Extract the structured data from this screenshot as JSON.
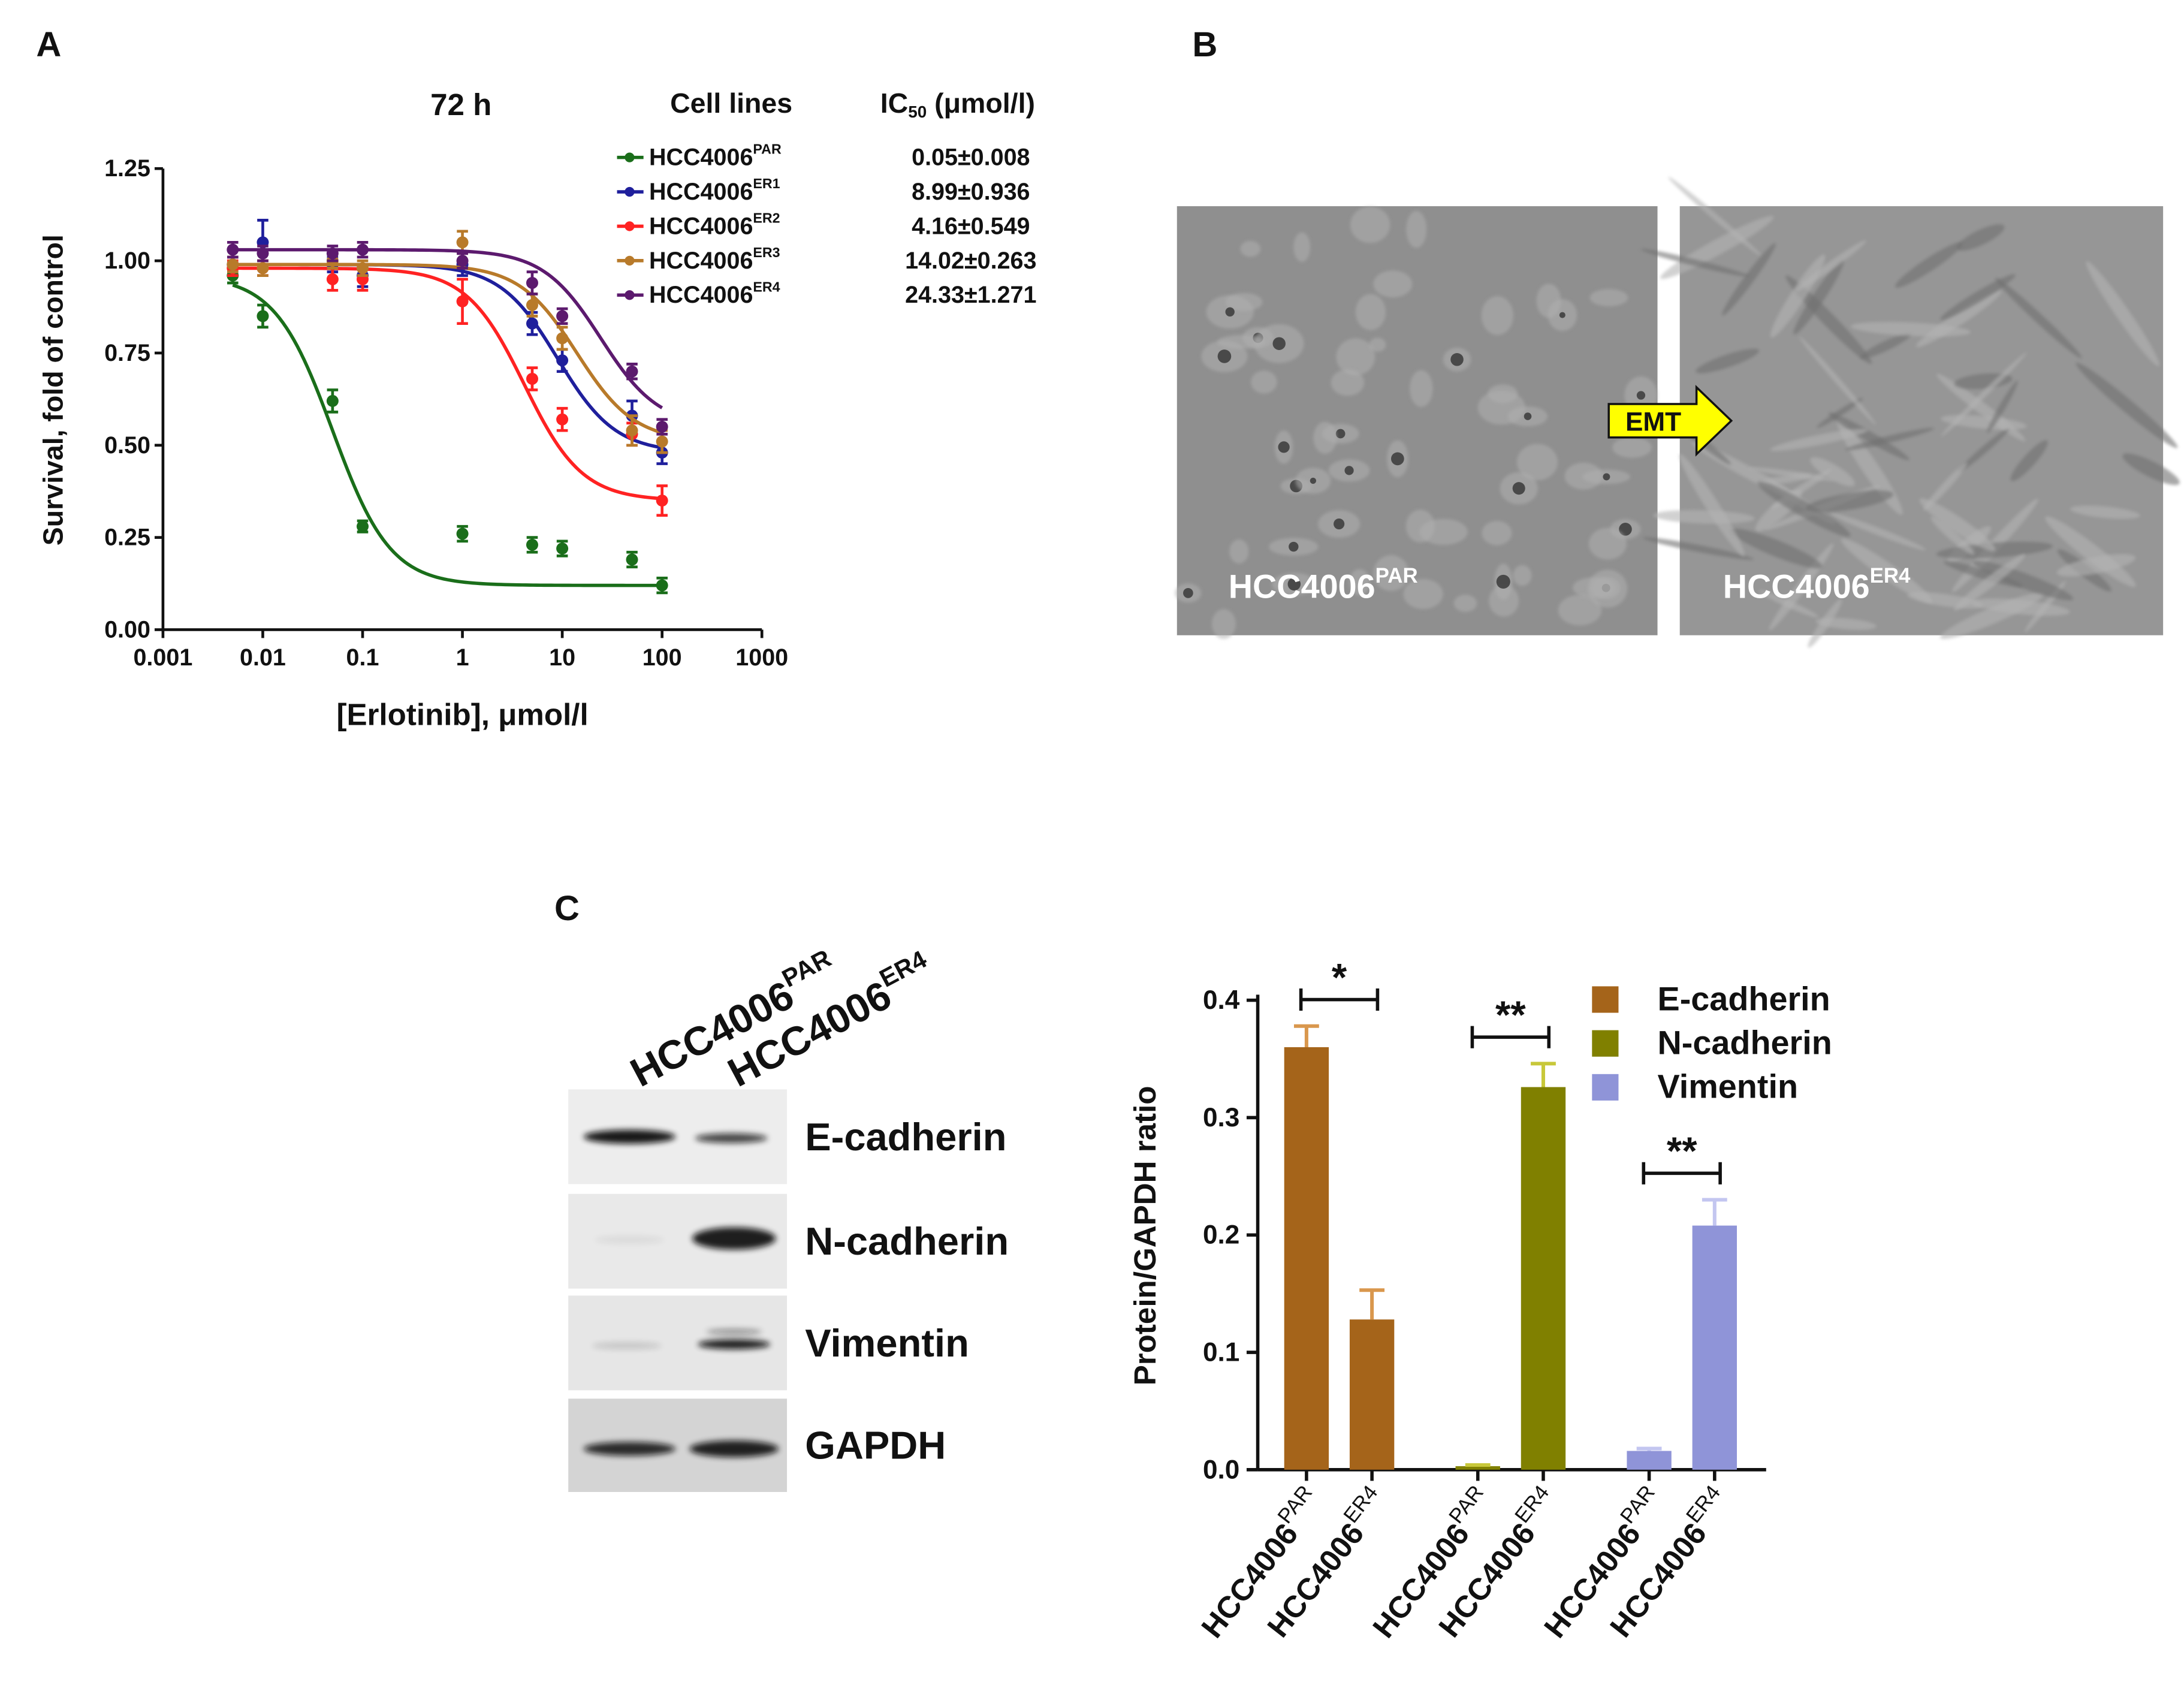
{
  "panel_labels": [
    "A",
    "B",
    "C"
  ],
  "chart_data": [
    {
      "type": "line",
      "title": "72 h",
      "x_label": "[Erlotinib], μmol/l",
      "y_label": "Survival, fold of control",
      "legend_header": "Cell lines",
      "ic50_header": {
        "base": "IC",
        "sub": "50",
        "rest": " (μmol/l)"
      },
      "log_x": true,
      "x": [
        0.005,
        0.01,
        0.05,
        0.1,
        1,
        5,
        10,
        50,
        100
      ],
      "xlim": [
        0.001,
        1000
      ],
      "xticks": [
        0.001,
        0.01,
        0.1,
        1,
        10,
        100,
        1000
      ],
      "ylim": [
        0,
        1.25
      ],
      "yticks": [
        {
          "value": 0,
          "label": "0.00"
        },
        0.25,
        {
          "value": 0.5,
          "label": "0.50"
        },
        0.75,
        {
          "value": 1,
          "label": "1.00"
        },
        1.25
      ],
      "series": [
        {
          "name": "HCC4006",
          "superscript": "PAR",
          "color": "#1a6e1a",
          "values": [
            0.96,
            0.85,
            0.62,
            0.28,
            0.26,
            0.23,
            0.22,
            0.19,
            0.12
          ],
          "errors": [
            0.02,
            0.03,
            0.03,
            0.015,
            0.02,
            0.02,
            0.02,
            0.02,
            0.02
          ],
          "ic50": 0.05,
          "ic50_sd": 0.008,
          "ic50_label": "0.05±0.008"
        },
        {
          "name": "HCC4006",
          "superscript": "ER1",
          "color": "#1f1f9c",
          "values": [
            0.99,
            1.05,
            0.99,
            0.96,
            0.99,
            0.83,
            0.73,
            0.58,
            0.48
          ],
          "errors": [
            0.02,
            0.06,
            0.02,
            0.03,
            0.03,
            0.03,
            0.03,
            0.04,
            0.03
          ],
          "ic50": 8.99,
          "ic50_sd": 0.936,
          "ic50_label": "8.99±0.936"
        },
        {
          "name": "HCC4006",
          "superscript": "ER2",
          "color": "#ff2222",
          "values": [
            0.98,
            0.98,
            0.95,
            0.95,
            0.89,
            0.68,
            0.57,
            0.53,
            0.35
          ],
          "errors": [
            0.02,
            0.02,
            0.03,
            0.03,
            0.06,
            0.03,
            0.03,
            0.03,
            0.04
          ],
          "ic50": 4.16,
          "ic50_sd": 0.549,
          "ic50_label": "4.16±0.549"
        },
        {
          "name": "HCC4006",
          "superscript": "ER3",
          "color": "#b87a2a",
          "values": [
            0.99,
            0.98,
            1.0,
            0.98,
            1.05,
            0.88,
            0.79,
            0.54,
            0.51
          ],
          "errors": [
            0.02,
            0.02,
            0.02,
            0.02,
            0.03,
            0.03,
            0.03,
            0.04,
            0.03
          ],
          "ic50": 14.02,
          "ic50_sd": 0.263,
          "ic50_label": "14.02±0.263"
        },
        {
          "name": "HCC4006",
          "superscript": "ER4",
          "color": "#5c1a6e",
          "values": [
            1.03,
            1.02,
            1.02,
            1.03,
            1.0,
            0.94,
            0.85,
            0.7,
            0.55
          ],
          "errors": [
            0.02,
            0.02,
            0.02,
            0.02,
            0.02,
            0.03,
            0.02,
            0.02,
            0.02
          ],
          "ic50": 24.33,
          "ic50_sd": 1.271,
          "ic50_label": "24.33±1.271"
        }
      ]
    },
    {
      "type": "bar",
      "y_label": "Protein/GAPDH ratio",
      "categories": [
        {
          "name": "HCC4006",
          "superscript": "PAR"
        },
        {
          "name": "HCC4006",
          "superscript": "ER4"
        },
        {
          "name": "HCC4006",
          "superscript": "PAR"
        },
        {
          "name": "HCC4006",
          "superscript": "ER4"
        },
        {
          "name": "HCC4006",
          "superscript": "PAR"
        },
        {
          "name": "HCC4006",
          "superscript": "ER4"
        }
      ],
      "ylim": [
        0,
        0.4
      ],
      "yticks": [
        {
          "value": 0,
          "label": "0.0"
        },
        0.1,
        0.2,
        0.3,
        0.4
      ],
      "series": [
        {
          "name": "E-cadherin",
          "color": "#a5641a",
          "error_color": "#d9974d",
          "values": [
            0.36,
            0.128,
            null,
            null,
            null,
            null
          ],
          "errors": [
            0.018,
            0.025,
            null,
            null,
            null,
            null
          ]
        },
        {
          "name": "N-cadherin",
          "color": "#808000",
          "error_color": "#c8c83a",
          "values": [
            null,
            null,
            0.003,
            0.326,
            null,
            null
          ],
          "errors": [
            null,
            null,
            0.001,
            0.02,
            null,
            null
          ]
        },
        {
          "name": "Vimentin",
          "color": "#8f94d8",
          "error_color": "#c3c6f0",
          "values": [
            null,
            null,
            null,
            null,
            0.016,
            0.208
          ],
          "errors": [
            null,
            null,
            null,
            null,
            0.002,
            0.022
          ]
        }
      ],
      "annotations": [
        "*",
        "**",
        "**"
      ]
    }
  ],
  "panel_b": {
    "images": [
      {
        "name": "HCC4006",
        "superscript": "PAR"
      },
      {
        "name": "HCC4006",
        "superscript": "ER4"
      }
    ],
    "arrow_label": "EMT"
  },
  "blot": {
    "lanes": [
      {
        "name": "HCC4006",
        "superscript": "PAR"
      },
      {
        "name": "HCC4006",
        "superscript": "ER4"
      }
    ],
    "proteins": [
      "E-cadherin",
      "N-cadherin",
      "Vimentin",
      "GAPDH"
    ]
  }
}
